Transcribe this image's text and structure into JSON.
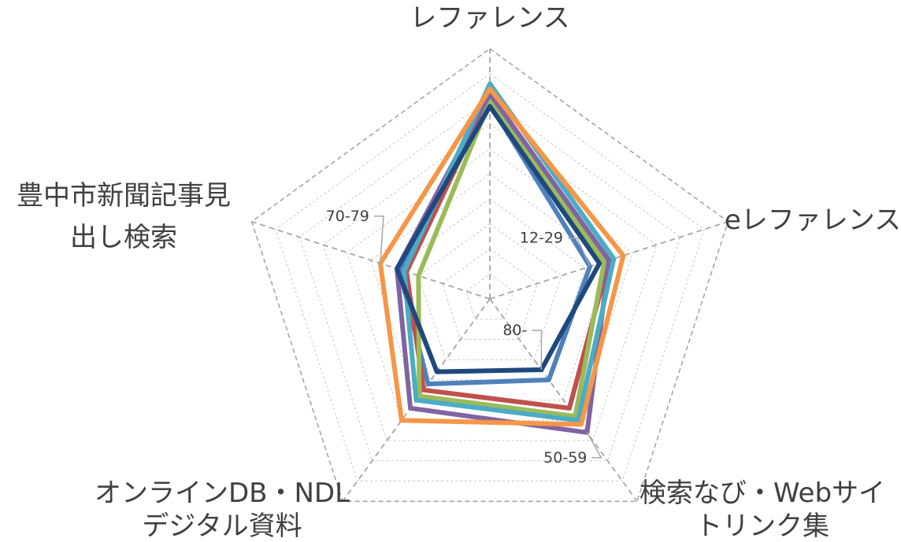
{
  "chart_data": {
    "type": "radar",
    "axes": [
      {
        "line1": "レファレンス",
        "line2": ""
      },
      {
        "line1": "eレファレンス",
        "line2": ""
      },
      {
        "line1": "検索なび・Webサイ",
        "line2": "トリンク集"
      },
      {
        "line1": "オンラインDB・NDL",
        "line2": "デジタル資料"
      },
      {
        "line1": "豊中市新聞記事見",
        "line2": "出し検索"
      }
    ],
    "rmax": 10,
    "gridlines": true,
    "series": [
      {
        "color": "#4f81bd",
        "values": [
          7.8,
          4.2,
          4.0,
          4.2,
          3.8
        ]
      },
      {
        "color": "#c0504d",
        "values": [
          8.1,
          5.0,
          5.4,
          4.5,
          3.5
        ]
      },
      {
        "color": "#9bbb59",
        "values": [
          7.9,
          4.8,
          5.8,
          4.8,
          3.0
        ]
      },
      {
        "color": "#8064a2",
        "values": [
          8.2,
          5.0,
          6.6,
          5.4,
          3.9
        ]
      },
      {
        "color": "#4bacc6",
        "values": [
          8.6,
          5.2,
          6.0,
          5.0,
          3.6
        ]
      },
      {
        "color": "#f79646",
        "values": [
          8.4,
          5.6,
          6.2,
          6.0,
          4.6
        ]
      },
      {
        "color": "#1f497d",
        "values": [
          7.7,
          4.6,
          3.5,
          3.6,
          3.9
        ]
      }
    ],
    "callouts": [
      {
        "text": "12-29",
        "series": 0,
        "axis": 1
      },
      {
        "text": "80-",
        "series": 6,
        "axis": 2
      },
      {
        "text": "50-59",
        "series": 3,
        "axis": 2
      },
      {
        "text": "70-79",
        "series": 5,
        "axis": 4
      }
    ]
  }
}
